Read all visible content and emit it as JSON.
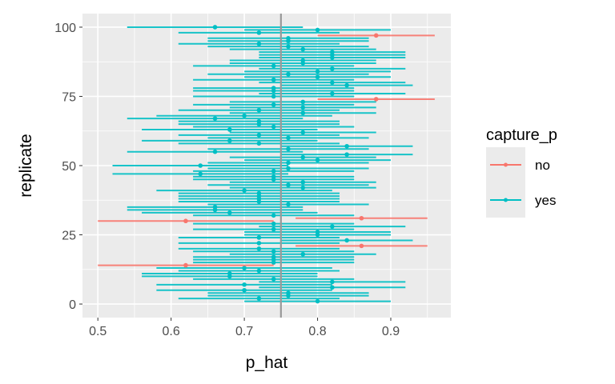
{
  "chart_data": {
    "type": "errorbar",
    "xlabel": "p_hat",
    "ylabel": "replicate",
    "xlim": [
      0.479,
      0.982
    ],
    "ylim": [
      -4.9,
      104.9
    ],
    "x_ticks": [
      "0.5",
      "0.6",
      "0.7",
      "0.8",
      "0.9"
    ],
    "x_tick_values": [
      0.5,
      0.6,
      0.7,
      0.8,
      0.9
    ],
    "y_ticks": [
      "0",
      "25",
      "50",
      "75",
      "100"
    ],
    "y_tick_values": [
      0,
      25,
      50,
      75,
      100
    ],
    "reference_line": 0.75,
    "grid": true,
    "legend": {
      "title": "capture_p",
      "placement": "right",
      "entries": [
        {
          "label": "no",
          "color": "#F8766D"
        },
        {
          "label": "yes",
          "color": "#00BFC4"
        }
      ]
    },
    "reference_color": "#999999",
    "replicates_start": 1,
    "p_hat": [
      0.8,
      0.72,
      0.76,
      0.76,
      0.7,
      0.82,
      0.7,
      0.82,
      0.74,
      0.68,
      0.68,
      0.72,
      0.7,
      0.62,
      0.74,
      0.74,
      0.74,
      0.78,
      0.74,
      0.72,
      0.86,
      0.72,
      0.84,
      0.72,
      0.8,
      0.8,
      0.74,
      0.82,
      0.74,
      0.62,
      0.86,
      0.74,
      0.68,
      0.66,
      0.66,
      0.76,
      0.72,
      0.72,
      0.72,
      0.72,
      0.7,
      0.78,
      0.76,
      0.78,
      0.74,
      0.74,
      0.64,
      0.74,
      0.76,
      0.64,
      0.76,
      0.8,
      0.78,
      0.84,
      0.66,
      0.76,
      0.84,
      0.72,
      0.68,
      0.76,
      0.72,
      0.78,
      0.68,
      0.74,
      0.72,
      0.72,
      0.66,
      0.7,
      0.78,
      0.72,
      0.78,
      0.74,
      0.78,
      0.88,
      0.74,
      0.82,
      0.74,
      0.74,
      0.84,
      0.82,
      0.74,
      0.8,
      0.76,
      0.8,
      0.82,
      0.74,
      0.78,
      0.78,
      0.82,
      0.82,
      0.82,
      0.78,
      0.76,
      0.72,
      0.76,
      0.76,
      0.88,
      0.72,
      0.8,
      0.66
    ],
    "not_captured_replicates": [
      14,
      21,
      30,
      31,
      74,
      97
    ],
    "intervals": {
      "0.62": [
        0.5,
        0.74
      ],
      "0.64": [
        0.52,
        0.76
      ],
      "0.66": [
        0.54,
        0.78
      ],
      "0.68": [
        0.56,
        0.8
      ],
      "0.70": [
        0.58,
        0.82
      ],
      "0.72": [
        0.61,
        0.83
      ],
      "0.74": [
        0.63,
        0.85
      ],
      "0.76": [
        0.65,
        0.87
      ],
      "0.78": [
        0.68,
        0.88
      ],
      "0.80": [
        0.7,
        0.9
      ],
      "0.82": [
        0.72,
        0.92
      ],
      "0.84": [
        0.75,
        0.93
      ],
      "0.86": [
        0.77,
        0.95
      ],
      "0.88": [
        0.8,
        0.96
      ]
    }
  }
}
